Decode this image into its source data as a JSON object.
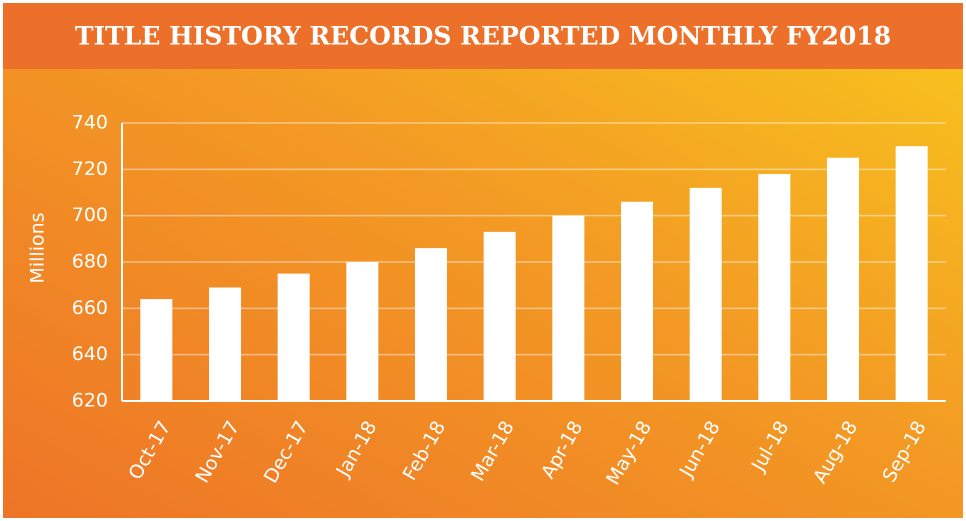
{
  "chart_data": {
    "type": "bar",
    "title": "TITLE HISTORY RECORDS REPORTED MONTHLY FY2018",
    "y_label": "Millions",
    "categories": [
      "Oct-17",
      "Nov-17",
      "Dec-17",
      "Jan-18",
      "Feb-18",
      "Mar-18",
      "Apr-18",
      "May-18",
      "Jun-18",
      "Jul-18",
      "Aug-18",
      "Sep-18"
    ],
    "values": [
      664,
      669,
      675,
      680,
      686,
      693,
      700,
      706,
      712,
      718,
      725,
      730
    ],
    "color": "#ffffff",
    "ylim": [
      620,
      740
    ],
    "yticks": [
      620,
      640,
      660,
      680,
      700,
      720,
      740
    ],
    "grid": true
  }
}
